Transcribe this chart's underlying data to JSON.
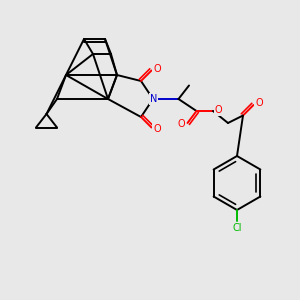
{
  "background_color": "#e8e8e8",
  "bond_color": "#000000",
  "bond_width": 1.4,
  "atom_colors": {
    "O": "#ff0000",
    "N": "#0000cc",
    "Cl": "#00bb00",
    "C": "#000000"
  },
  "font_size_atom": 7.0,
  "canvas_xlim": [
    0,
    10
  ],
  "canvas_ylim": [
    0,
    10
  ]
}
